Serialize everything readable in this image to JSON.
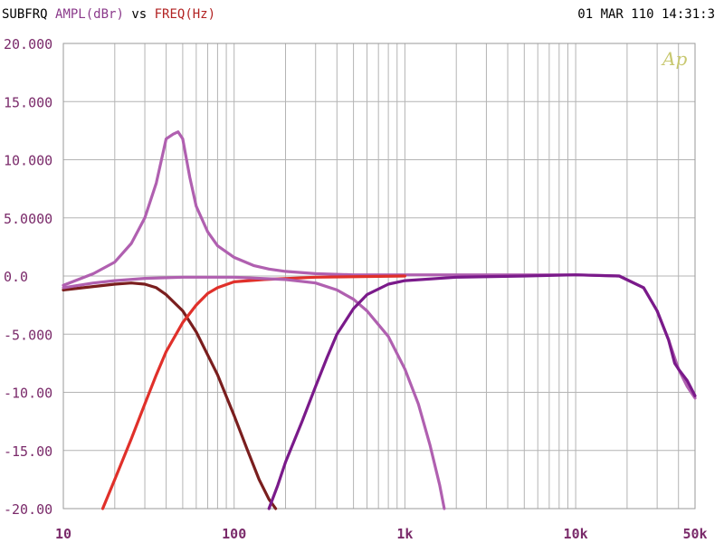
{
  "header": {
    "prefix": "SUBFRQ",
    "yname": "AMPL(dBr)",
    "vs": "vs",
    "xname": "FREQ(Hz)",
    "datetime": "01 MAR 110 14:31:3",
    "logo": "Ap"
  },
  "colors": {
    "yname": "#8b3a8b",
    "xname": "#b22222",
    "ticks": "#7a2a6a",
    "grid": "#b4b4b4",
    "boost": "#b060b0",
    "lowpass": "#7a1e1e",
    "highpass_red": "#e0302a",
    "bandpass": "#b060b0",
    "highpass_purple": "#7a1a8a",
    "logo": "#c8c870"
  },
  "chart_data": {
    "type": "line",
    "x_scale": "log",
    "xlim": [
      10,
      50000
    ],
    "ylim": [
      -20,
      20
    ],
    "xticks": [
      {
        "value": 10,
        "label": "10"
      },
      {
        "value": 100,
        "label": "100"
      },
      {
        "value": 1000,
        "label": "1k"
      },
      {
        "value": 10000,
        "label": "10k"
      },
      {
        "value": 50000,
        "label": "50k"
      }
    ],
    "yticks": [
      {
        "value": 20,
        "label": "20.000"
      },
      {
        "value": 15,
        "label": "15.000"
      },
      {
        "value": 10,
        "label": "10.000"
      },
      {
        "value": 5,
        "label": "5.0000"
      },
      {
        "value": 0,
        "label": "0.0"
      },
      {
        "value": -5,
        "label": "-5.000"
      },
      {
        "value": -10,
        "label": "-10.00"
      },
      {
        "value": -15,
        "label": "-15.00"
      },
      {
        "value": -20,
        "label": "-20.00"
      }
    ],
    "grid": true,
    "series": [
      {
        "key": "boost",
        "x": [
          10,
          15,
          20,
          25,
          30,
          35,
          40,
          44,
          47,
          50,
          55,
          60,
          70,
          80,
          100,
          130,
          160,
          200,
          300,
          500,
          1000,
          3000,
          10000,
          18000,
          25000,
          30000,
          35000,
          40000,
          45000,
          50000
        ],
        "y": [
          -0.8,
          0.2,
          1.2,
          2.8,
          5.0,
          8.0,
          11.8,
          12.2,
          12.4,
          11.8,
          8.5,
          6.0,
          3.8,
          2.6,
          1.6,
          0.9,
          0.6,
          0.4,
          0.2,
          0.1,
          0.1,
          0.1,
          0.1,
          0.0,
          -1.0,
          -3.0,
          -5.5,
          -8.0,
          -9.5,
          -10.5
        ]
      },
      {
        "key": "lowpass",
        "x": [
          10,
          15,
          20,
          25,
          30,
          35,
          40,
          50,
          60,
          80,
          100,
          120,
          140,
          160,
          175
        ],
        "y": [
          -1.2,
          -0.9,
          -0.7,
          -0.6,
          -0.7,
          -1.0,
          -1.6,
          -3.0,
          -4.8,
          -8.5,
          -12.0,
          -15.0,
          -17.5,
          -19.2,
          -20.0
        ]
      },
      {
        "key": "highpass_red",
        "x": [
          17,
          20,
          25,
          30,
          35,
          40,
          50,
          60,
          70,
          80,
          100,
          150,
          300,
          1000
        ],
        "y": [
          -20.0,
          -17.5,
          -14.0,
          -11.0,
          -8.5,
          -6.5,
          -4.0,
          -2.5,
          -1.5,
          -1.0,
          -0.5,
          -0.3,
          -0.1,
          0.0
        ]
      },
      {
        "key": "bandpass",
        "x": [
          10,
          15,
          20,
          30,
          50,
          100,
          200,
          300,
          400,
          500,
          600,
          800,
          1000,
          1200,
          1400,
          1600,
          1700
        ],
        "y": [
          -1.0,
          -0.6,
          -0.4,
          -0.2,
          -0.1,
          -0.1,
          -0.3,
          -0.6,
          -1.2,
          -2.0,
          -3.0,
          -5.2,
          -8.0,
          -11.0,
          -14.5,
          -18.0,
          -20.0
        ]
      },
      {
        "key": "highpass_purple",
        "x": [
          160,
          180,
          200,
          250,
          300,
          350,
          400,
          500,
          600,
          800,
          1000,
          2000,
          5000,
          10000,
          18000,
          25000,
          30000,
          35000,
          38000,
          40000,
          45000,
          50000
        ],
        "y": [
          -20.0,
          -18.0,
          -16.0,
          -12.5,
          -9.5,
          -7.0,
          -5.0,
          -2.8,
          -1.6,
          -0.7,
          -0.4,
          -0.1,
          0.0,
          0.1,
          0.0,
          -1.0,
          -3.0,
          -5.5,
          -7.5,
          -8.0,
          -9.0,
          -10.3
        ]
      }
    ]
  }
}
